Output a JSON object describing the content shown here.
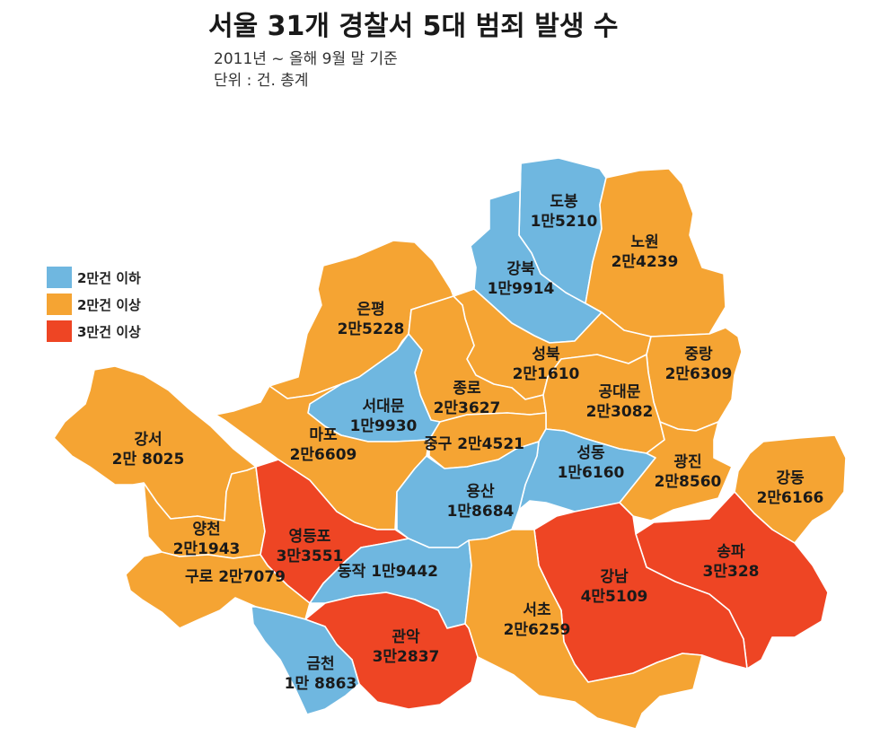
{
  "title": "서울 31개 경찰서 5대 범죄 발생 수",
  "subtitle_period": "2011년 ~ 올해 9월 말 기준",
  "subtitle_unit": "단위 : 건. 총계",
  "colors": {
    "low": "#6fb7e0",
    "mid": "#f5a433",
    "high": "#ee4524"
  },
  "legend": [
    {
      "key": "low",
      "label": "2만건 이하"
    },
    {
      "key": "mid",
      "label": "2만건 이상"
    },
    {
      "key": "high",
      "label": "3만건 이상"
    }
  ],
  "districts": [
    {
      "id": "dobong",
      "name": "도봉",
      "value_label": "1만5210",
      "value": 15210,
      "class": "low"
    },
    {
      "id": "nowon",
      "name": "노원",
      "value_label": "2만4239",
      "value": 24239,
      "class": "mid"
    },
    {
      "id": "gangbuk",
      "name": "강북",
      "value_label": "1만9914",
      "value": 19914,
      "class": "low"
    },
    {
      "id": "eunpyeong",
      "name": "은평",
      "value_label": "2만5228",
      "value": 25228,
      "class": "mid"
    },
    {
      "id": "seongbuk",
      "name": "성북",
      "value_label": "2만1610",
      "value": 21610,
      "class": "mid"
    },
    {
      "id": "jungnang",
      "name": "중랑",
      "value_label": "2만6309",
      "value": 26309,
      "class": "mid"
    },
    {
      "id": "jongno",
      "name": "종로",
      "value_label": "2만3627",
      "value": 23627,
      "class": "mid"
    },
    {
      "id": "seodaemun",
      "name": "서대문",
      "value_label": "1만9930",
      "value": 19930,
      "class": "low"
    },
    {
      "id": "gongdaemun",
      "name": "공대문",
      "value_label": "2만3082",
      "value": 23082,
      "class": "mid"
    },
    {
      "id": "mapo",
      "name": "마포",
      "value_label": "2만6609",
      "value": 26609,
      "class": "mid"
    },
    {
      "id": "gangseo",
      "name": "강서",
      "value_label": "2만 8025",
      "value": 28025,
      "class": "mid"
    },
    {
      "id": "junggu",
      "name": "중구",
      "value_label": "2만4521",
      "value": 24521,
      "class": "mid"
    },
    {
      "id": "seongdong",
      "name": "성동",
      "value_label": "1만6160",
      "value": 16160,
      "class": "low"
    },
    {
      "id": "gwangjin",
      "name": "광진",
      "value_label": "2만8560",
      "value": 28560,
      "class": "mid"
    },
    {
      "id": "gangdong",
      "name": "강동",
      "value_label": "2만6166",
      "value": 26166,
      "class": "mid"
    },
    {
      "id": "yongsan",
      "name": "용산",
      "value_label": "1만8684",
      "value": 18684,
      "class": "low"
    },
    {
      "id": "yangcheon",
      "name": "양천",
      "value_label": "2만1943",
      "value": 21943,
      "class": "mid"
    },
    {
      "id": "yeongdeungpo",
      "name": "영등포",
      "value_label": "3만3551",
      "value": 33551,
      "class": "high"
    },
    {
      "id": "guro",
      "name": "구로",
      "value_label": "2만7079",
      "value": 27079,
      "class": "mid"
    },
    {
      "id": "dongjak",
      "name": "동작",
      "value_label": "1만9442",
      "value": 19442,
      "class": "low"
    },
    {
      "id": "songpa",
      "name": "송파",
      "value_label": "3만328",
      "value": 30328,
      "class": "high"
    },
    {
      "id": "gangnam",
      "name": "강남",
      "value_label": "4만5109",
      "value": 45109,
      "class": "high"
    },
    {
      "id": "seocho",
      "name": "서초",
      "value_label": "2만6259",
      "value": 26259,
      "class": "mid"
    },
    {
      "id": "gwanak",
      "name": "관악",
      "value_label": "3만2837",
      "value": 32837,
      "class": "high"
    },
    {
      "id": "geumcheon",
      "name": "금천",
      "value_label": "1만 8863",
      "value": 18863,
      "class": "low"
    }
  ]
}
